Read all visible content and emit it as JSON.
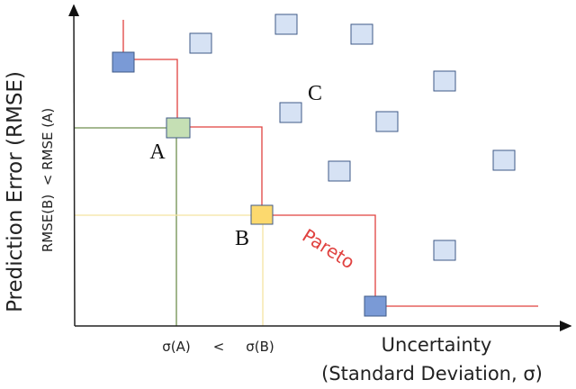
{
  "labels": {
    "y_axis": "Prediction Error (RMSE)",
    "y_compare": "RMSE(B)  < RMSE (A)",
    "x_axis_line1": "Uncertainty",
    "x_axis_line2": "(Standard Deviation, σ)",
    "sigma_a": "σ(A)",
    "less_than": "<",
    "sigma_b": "σ(B)",
    "point_a": "A",
    "point_b": "B",
    "point_c": "C",
    "pareto": "Pareto"
  },
  "colors": {
    "pareto_line": "#e0413f",
    "point_a": "#c5dfb4",
    "point_b": "#fcd96e",
    "pareto_point": "#7a9ad6",
    "other_point": "#d6e2f4",
    "guide_a": "#6f8f4f",
    "guide_b": "#f4e3a0"
  }
}
